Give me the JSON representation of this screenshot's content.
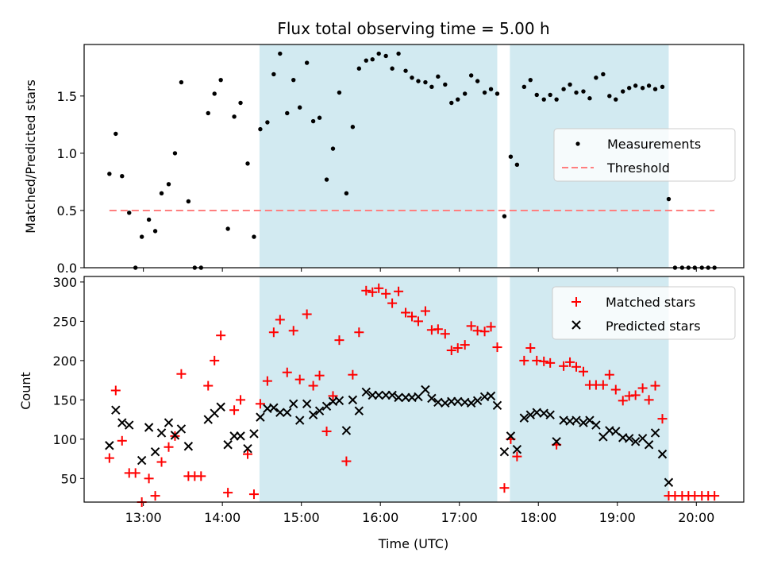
{
  "chart_data": {
    "title": "Flux total observing time = 5.00 h",
    "type": "scatter",
    "colors": {
      "shade": "#add8e6",
      "measurements": "#000000",
      "threshold": "#ff7f7f",
      "matched": "#ff0000",
      "predicted": "#000000"
    },
    "x_axis": {
      "label": "Time (UTC)",
      "range": [
        12.25,
        20.6
      ],
      "ticks": [
        13,
        14,
        15,
        16,
        17,
        18,
        19,
        20
      ],
      "tick_labels": [
        "13:00",
        "14:00",
        "15:00",
        "16:00",
        "17:00",
        "18:00",
        "19:00",
        "20:00"
      ]
    },
    "shaded_intervals": [
      [
        14.47,
        17.48
      ],
      [
        17.64,
        19.65
      ]
    ],
    "panels": [
      {
        "ylabel": "Matched/Predicted stars",
        "ylim": [
          0,
          1.95
        ],
        "yticks": [
          0.0,
          0.5,
          1.0,
          1.5
        ],
        "ytick_labels": [
          "0.0",
          "0.5",
          "1.0",
          "1.5"
        ],
        "legend_position": "center-right",
        "series": [
          {
            "name": "Measurements",
            "marker": "dot",
            "x": [
              12.57,
              12.65,
              12.73,
              12.82,
              12.9,
              12.98,
              13.07,
              13.15,
              13.23,
              13.32,
              13.4,
              13.48,
              13.57,
              13.65,
              13.73,
              13.82,
              13.9,
              13.98,
              14.07,
              14.15,
              14.23,
              14.32,
              14.4,
              14.48,
              14.57,
              14.65,
              14.73,
              14.82,
              14.9,
              14.98,
              15.07,
              15.15,
              15.23,
              15.32,
              15.4,
              15.48,
              15.57,
              15.65,
              15.73,
              15.82,
              15.9,
              15.98,
              16.07,
              16.15,
              16.23,
              16.32,
              16.4,
              16.48,
              16.57,
              16.65,
              16.73,
              16.82,
              16.9,
              16.98,
              17.07,
              17.15,
              17.23,
              17.32,
              17.4,
              17.48,
              17.57,
              17.65,
              17.73,
              17.82,
              17.9,
              17.98,
              18.07,
              18.15,
              18.23,
              18.32,
              18.4,
              18.48,
              18.57,
              18.65,
              18.73,
              18.82,
              18.9,
              18.98,
              19.07,
              19.15,
              19.23,
              19.32,
              19.4,
              19.48,
              19.57,
              19.65,
              19.73,
              19.82,
              19.9,
              19.98,
              20.07,
              20.15,
              20.23
            ],
            "y": [
              0.82,
              1.17,
              0.8,
              0.48,
              0.0,
              0.27,
              0.42,
              0.32,
              0.65,
              0.73,
              1.0,
              1.62,
              0.58,
              0.0,
              0.0,
              1.35,
              1.52,
              1.64,
              0.34,
              1.32,
              1.44,
              0.91,
              0.27,
              1.21,
              1.27,
              1.69,
              1.87,
              1.35,
              1.64,
              1.4,
              1.79,
              1.28,
              1.31,
              0.77,
              1.04,
              1.53,
              0.65,
              1.23,
              1.74,
              1.81,
              1.82,
              1.87,
              1.85,
              1.74,
              1.87,
              1.72,
              1.66,
              1.63,
              1.62,
              1.58,
              1.67,
              1.6,
              1.44,
              1.47,
              1.52,
              1.68,
              1.63,
              1.53,
              1.56,
              1.52,
              0.45,
              0.97,
              0.9,
              1.58,
              1.64,
              1.51,
              1.47,
              1.51,
              1.47,
              1.56,
              1.6,
              1.53,
              1.54,
              1.48,
              1.66,
              1.69,
              1.5,
              1.47,
              1.54,
              1.57,
              1.59,
              1.57,
              1.59,
              1.56,
              1.58,
              0.6,
              0.0,
              0.0,
              0.0,
              0.0,
              0.0,
              0.0,
              0.0
            ]
          },
          {
            "name": "Threshold",
            "style": "dashed",
            "x": [
              12.57,
              20.23
            ],
            "y": [
              0.5,
              0.5
            ]
          }
        ]
      },
      {
        "ylabel": "Count",
        "ylim": [
          20,
          307
        ],
        "yticks": [
          50,
          100,
          150,
          200,
          250,
          300
        ],
        "ytick_labels": [
          "50",
          "100",
          "150",
          "200",
          "250",
          "300"
        ],
        "legend_position": "top-right",
        "series": [
          {
            "name": "Matched stars",
            "marker": "plus",
            "x": [
              12.57,
              12.65,
              12.73,
              12.82,
              12.9,
              12.98,
              13.07,
              13.15,
              13.23,
              13.32,
              13.4,
              13.48,
              13.57,
              13.65,
              13.73,
              13.82,
              13.9,
              13.98,
              14.07,
              14.15,
              14.23,
              14.32,
              14.4,
              14.48,
              14.57,
              14.65,
              14.73,
              14.82,
              14.9,
              14.98,
              15.07,
              15.15,
              15.23,
              15.32,
              15.4,
              15.48,
              15.57,
              15.65,
              15.73,
              15.82,
              15.9,
              15.98,
              16.07,
              16.15,
              16.23,
              16.32,
              16.4,
              16.48,
              16.57,
              16.65,
              16.73,
              16.82,
              16.9,
              16.98,
              17.07,
              17.15,
              17.23,
              17.32,
              17.4,
              17.48,
              17.57,
              17.65,
              17.73,
              17.82,
              17.9,
              17.98,
              18.07,
              18.15,
              18.23,
              18.32,
              18.4,
              18.48,
              18.57,
              18.65,
              18.73,
              18.82,
              18.9,
              18.98,
              19.07,
              19.15,
              19.23,
              19.32,
              19.4,
              19.48,
              19.57,
              19.65,
              19.73,
              19.82,
              19.9,
              19.98,
              20.07,
              20.15,
              20.23
            ],
            "y": [
              76,
              162,
              98,
              57,
              57,
              20,
              50,
              28,
              71,
              90,
              104,
              183,
              53,
              53,
              53,
              168,
              200,
              232,
              32,
              137,
              150,
              81,
              30,
              145,
              174,
              236,
              252,
              185,
              238,
              176,
              259,
              168,
              181,
              110,
              155,
              226,
              72,
              182,
              236,
              289,
              287,
              292,
              285,
              273,
              288,
              261,
              256,
              250,
              263,
              239,
              240,
              234,
              213,
              216,
              220,
              244,
              238,
              237,
              243,
              217,
              38,
              100,
              78,
              200,
              216,
              200,
              199,
              197,
              93,
              193,
              198,
              192,
              186,
              169,
              169,
              169,
              182,
              163,
              149,
              155,
              156,
              165,
              150,
              168,
              126,
              28,
              28,
              28,
              28,
              28,
              28,
              28,
              28
            ]
          },
          {
            "name": "Predicted stars",
            "marker": "x",
            "x": [
              12.57,
              12.65,
              12.73,
              12.82,
              12.98,
              13.07,
              13.15,
              13.23,
              13.32,
              13.4,
              13.48,
              13.57,
              13.82,
              13.9,
              13.98,
              14.07,
              14.15,
              14.23,
              14.32,
              14.4,
              14.48,
              14.57,
              14.65,
              14.73,
              14.82,
              14.9,
              14.98,
              15.07,
              15.15,
              15.23,
              15.32,
              15.4,
              15.48,
              15.57,
              15.65,
              15.73,
              15.82,
              15.9,
              15.98,
              16.07,
              16.15,
              16.23,
              16.32,
              16.4,
              16.48,
              16.57,
              16.65,
              16.73,
              16.82,
              16.9,
              16.98,
              17.07,
              17.15,
              17.23,
              17.32,
              17.4,
              17.48,
              17.57,
              17.65,
              17.73,
              17.82,
              17.9,
              17.98,
              18.07,
              18.15,
              18.23,
              18.32,
              18.4,
              18.48,
              18.57,
              18.65,
              18.73,
              18.82,
              18.9,
              18.98,
              19.07,
              19.15,
              19.23,
              19.32,
              19.4,
              19.48,
              19.57,
              19.65
            ],
            "y": [
              92,
              137,
              121,
              118,
              73,
              115,
              84,
              108,
              121,
              105,
              113,
              91,
              125,
              133,
              141,
              93,
              104,
              104,
              88,
              107,
              128,
              139,
              140,
              134,
              134,
              145,
              124,
              145,
              131,
              136,
              142,
              148,
              149,
              111,
              150,
              136,
              160,
              156,
              156,
              156,
              156,
              153,
              153,
              153,
              154,
              163,
              152,
              147,
              146,
              148,
              148,
              147,
              146,
              149,
              154,
              155,
              143,
              84,
              104,
              87,
              127,
              131,
              134,
              133,
              131,
              97,
              124,
              123,
              124,
              121,
              124,
              118,
              103,
              111,
              110,
              102,
              101,
              97,
              101,
              93,
              108,
              81,
              45
            ]
          }
        ]
      }
    ]
  }
}
